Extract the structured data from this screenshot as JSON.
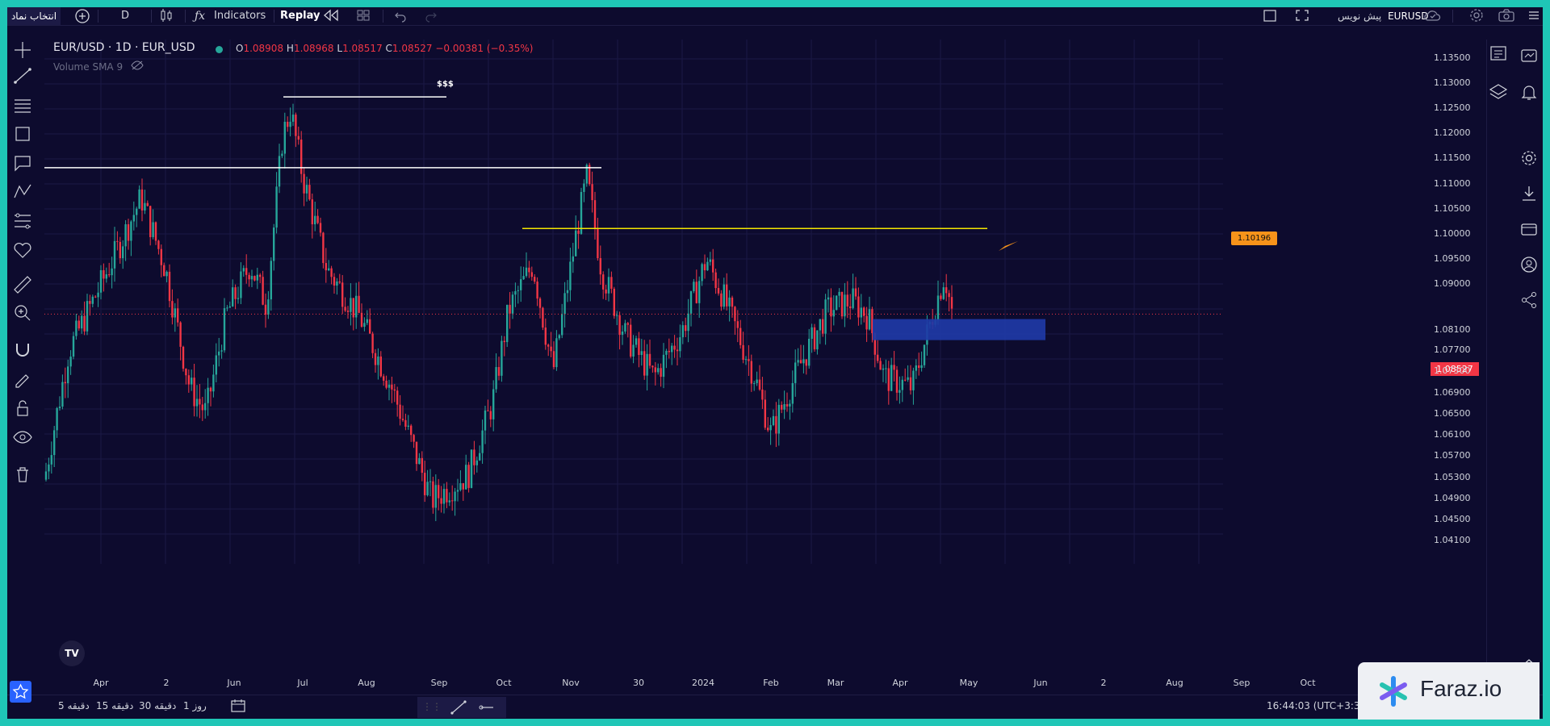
{
  "topbar": {
    "symbol_search_label": "انتخاب نماد",
    "interval": "D",
    "indicators_label": "Indicators",
    "replay_label": "Replay",
    "symbol_right": "EURUSD",
    "symbol_right_desc": "پیش نویس"
  },
  "legend": {
    "title": "EUR/USD · 1D · EUR_USD",
    "open_label": "O",
    "open": "1.08908",
    "high_label": "H",
    "high": "1.08968",
    "low_label": "L",
    "low": "1.08517",
    "close_label": "C",
    "close": "1.08527",
    "change": "−0.00381 (−0.35%)",
    "volume": "Volume SMA 9"
  },
  "annotations": {
    "liquidity_label": "$$$",
    "price_callout": "1.10196",
    "last_price": "1.08527"
  },
  "price_axis": [
    "1.13500",
    "1.13000",
    "1.12500",
    "1.12000",
    "1.11500",
    "1.11000",
    "1.10500",
    "1.10000",
    "1.09500",
    "1.09000",
    "1.08100",
    "1.07700",
    "1.07300",
    "1.06900",
    "1.06500",
    "1.06100",
    "1.05700",
    "1.05300",
    "1.04900",
    "1.04500",
    "1.04100"
  ],
  "time_axis": [
    "Apr",
    "2",
    "Jun",
    "Jul",
    "Aug",
    "Sep",
    "Oct",
    "Nov",
    "30",
    "2024",
    "Feb",
    "Mar",
    "Apr",
    "May",
    "Jun",
    "2",
    "Aug",
    "Sep",
    "Oct"
  ],
  "bottombar": {
    "tf_5m": "5 دقیقه",
    "tf_15m": "15 دقیقه",
    "tf_30m": "30 دقیقه",
    "tf_1d": "1 روز",
    "clock": "16:44:03 (UTC+3:3"
  },
  "watermark": "Faraz.io",
  "colors": {
    "up": "#26a69a",
    "down": "#f23645",
    "zone": "#1e3aa6",
    "hline": "#ffffff",
    "yline": "#f2e600",
    "callout": "#f7931a"
  }
}
